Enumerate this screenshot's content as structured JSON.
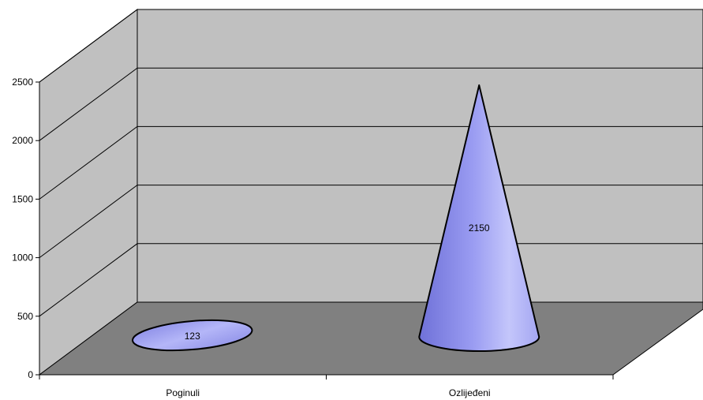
{
  "chart_data": {
    "type": "bar",
    "style": "3d-cone",
    "categories": [
      "Poginuli",
      "Ozlijeđeni"
    ],
    "values": [
      123,
      2150
    ],
    "data_labels": [
      "123",
      "2150"
    ],
    "title": "",
    "xlabel": "",
    "ylabel": "",
    "ylim": [
      0,
      2500
    ],
    "yticks": [
      0,
      500,
      1000,
      1500,
      2000,
      2500
    ],
    "ytick_labels": [
      "0",
      "500",
      "1000",
      "1500",
      "2000",
      "2500"
    ],
    "grid": true,
    "legend": "none",
    "colors": {
      "cone": "#9a9cf2",
      "wall": "#c0c0c0",
      "floor": "#808080",
      "gridline": "#000000"
    }
  }
}
